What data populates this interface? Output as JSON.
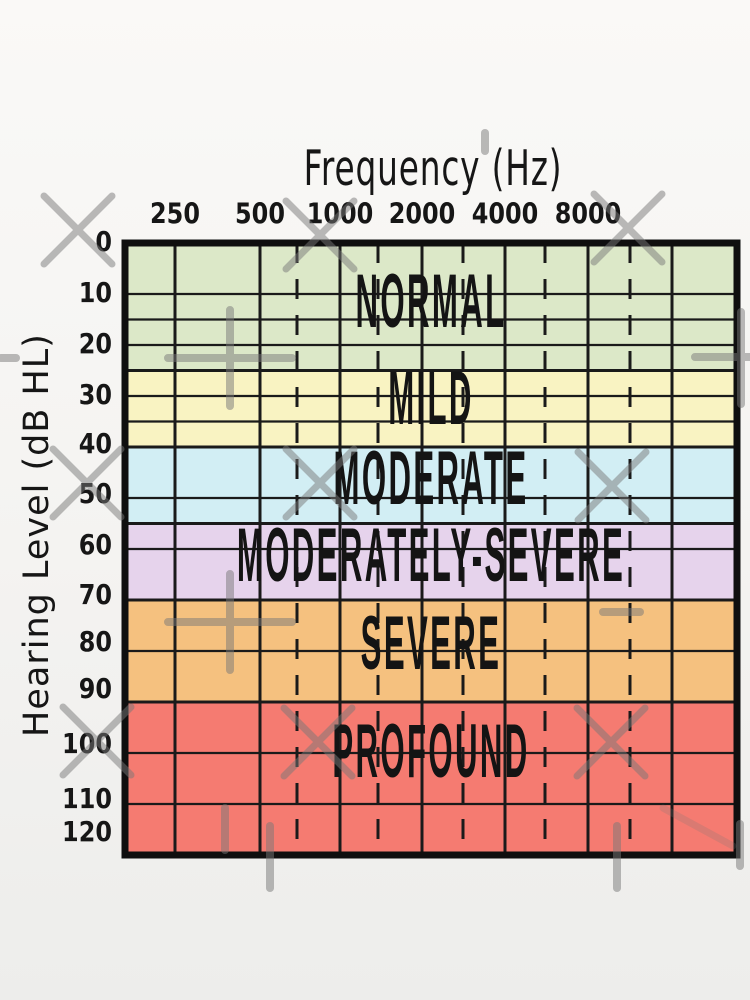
{
  "chart_data": {
    "type": "area",
    "title": "Frequency (Hz)",
    "xlabel": "Frequency (Hz)",
    "ylabel": "Hearing Level (dB HL)",
    "x_tick_labels": [
      "250",
      "500",
      "1000",
      "2000",
      "4000",
      "8000"
    ],
    "y_tick_labels": [
      "0",
      "10",
      "20",
      "30",
      "40",
      "50",
      "60",
      "70",
      "80",
      "90",
      "100",
      "110",
      "120"
    ],
    "ylim": [
      0,
      120
    ],
    "y_unit": "dB HL",
    "grid": true,
    "h_gridlines_db": [
      10,
      15,
      20,
      30,
      35,
      50,
      60,
      80,
      100,
      110
    ],
    "dashed_vertical_gridlines": "inter-octave frequencies",
    "bands": [
      {
        "label": "NORMAL",
        "db_from": 0,
        "db_to": 25,
        "color": "#dce8c8"
      },
      {
        "label": "MILD",
        "db_from": 25,
        "db_to": 40,
        "color": "#f9f3c2"
      },
      {
        "label": "MODERATE",
        "db_from": 40,
        "db_to": 55,
        "color": "#d2eef4"
      },
      {
        "label": "MODERATELY-SEVERE",
        "db_from": 55,
        "db_to": 70,
        "color": "#e6d3ec"
      },
      {
        "label": "SEVERE",
        "db_from": 70,
        "db_to": 90,
        "color": "#f5c17f"
      },
      {
        "label": "PROFOUND",
        "db_from": 90,
        "db_to": 120,
        "color": "#f57b71"
      }
    ],
    "line_color": "#1a1a1a",
    "border_color": "#0f0f0f",
    "background_color": "#f6f5f3",
    "watermark_color": "#787878"
  }
}
